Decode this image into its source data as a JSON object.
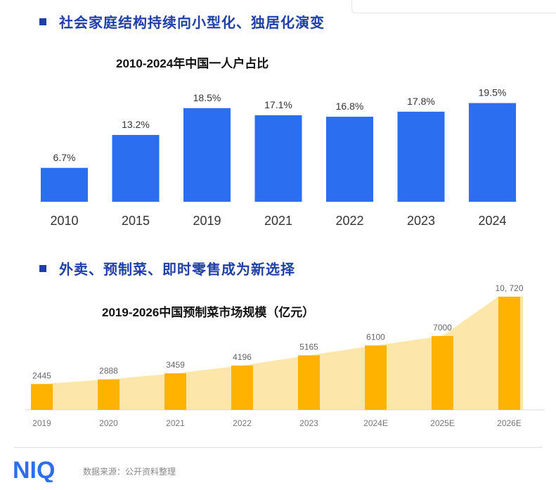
{
  "section1": {
    "heading": "社会家庭结构持续向小型化、独居化演变"
  },
  "section2": {
    "heading": "外卖、预制菜、即时零售成为新选择"
  },
  "logo": {
    "text": "NIQ"
  },
  "footer": {
    "source": "数据来源：公开资料整理"
  },
  "colors": {
    "heading": "#1f3fa6",
    "bar_blue": "#2b6ff0",
    "bar_orange": "#ffb300",
    "area_fill": "#fde3a0"
  },
  "chart_data": [
    {
      "type": "bar",
      "title": "2010-2024年中国一人户占比",
      "categories": [
        "2010",
        "2015",
        "2019",
        "2021",
        "2022",
        "2023",
        "2024"
      ],
      "values": [
        6.7,
        13.2,
        18.5,
        17.1,
        16.8,
        17.8,
        19.5
      ],
      "value_labels": [
        "6.7%",
        "13.2%",
        "18.5%",
        "17.1%",
        "16.8%",
        "17.8%",
        "19.5%"
      ],
      "unit": "%",
      "ylim": [
        0,
        20
      ],
      "grid": false
    },
    {
      "type": "bar",
      "title": "2019-2026中国预制菜市场规模（亿元）",
      "categories": [
        "2019",
        "2020",
        "2021",
        "2022",
        "2023",
        "2024E",
        "2025E",
        "2026E"
      ],
      "values": [
        2445,
        2888,
        3459,
        4196,
        5165,
        6100,
        7000,
        10720
      ],
      "value_labels": [
        "2445",
        "2888",
        "3459",
        "4196",
        "5165",
        "6100",
        "7000",
        "10, 720"
      ],
      "ylim": [
        0,
        10720
      ],
      "grid": false,
      "trend_area": true
    }
  ]
}
